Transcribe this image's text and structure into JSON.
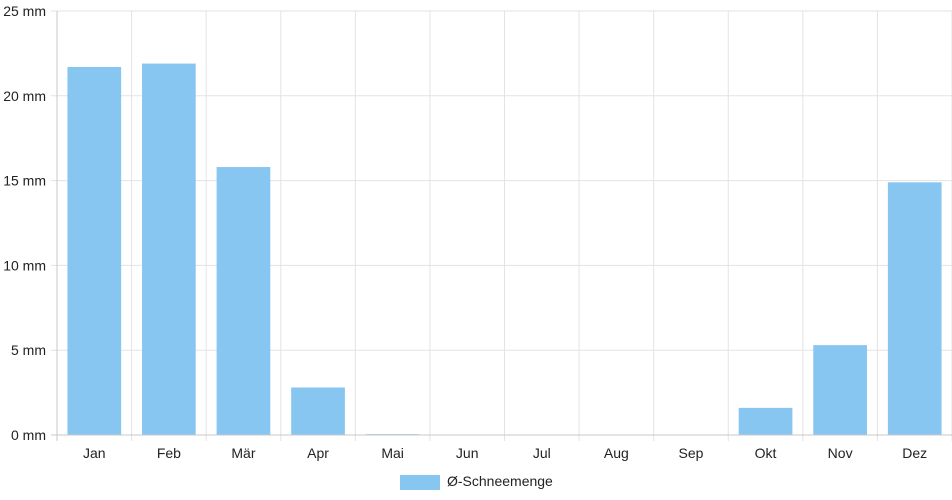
{
  "chart_data": {
    "type": "bar",
    "categories": [
      "Jan",
      "Feb",
      "Mär",
      "Apr",
      "Mai",
      "Jun",
      "Jul",
      "Aug",
      "Sep",
      "Okt",
      "Nov",
      "Dez"
    ],
    "series": [
      {
        "name": "Ø-Schneemenge",
        "values": [
          21.7,
          21.9,
          15.8,
          2.8,
          0.05,
          0,
          0,
          0,
          0,
          1.6,
          5.3,
          14.9
        ],
        "color": "#88c6f2"
      }
    ],
    "y_ticks": [
      "0 mm",
      "5 mm",
      "10 mm",
      "15 mm",
      "20 mm",
      "25 mm"
    ],
    "y_unit": "mm",
    "ylim": [
      0,
      25
    ],
    "grid": true,
    "legend_position": "bottom-center",
    "gridline_color": "#e3e3e3",
    "axis_color": "#c8c8c8"
  }
}
